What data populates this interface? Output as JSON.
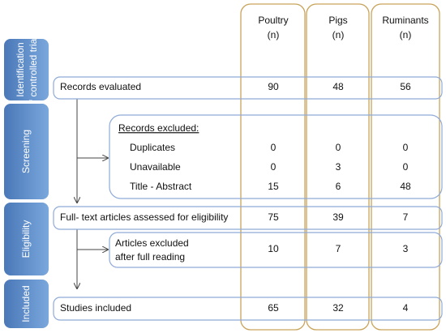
{
  "columns": [
    {
      "name": "Poultry",
      "unit": "(n)"
    },
    {
      "name": "Pigs",
      "unit": "(n)"
    },
    {
      "name": "Ruminants",
      "unit": "(n)"
    }
  ],
  "stages": [
    [
      "Identification",
      "of controlled trials"
    ],
    [
      "Screening"
    ],
    [
      "Eligibility"
    ],
    [
      "Included"
    ]
  ],
  "records_evaluated": {
    "label": "Records evaluated",
    "values": [
      90,
      48,
      56
    ]
  },
  "screening": {
    "title": "Records excluded:",
    "rows": [
      {
        "label": "Duplicates",
        "values": [
          0,
          0,
          0
        ]
      },
      {
        "label": "Unavailable",
        "values": [
          0,
          3,
          0
        ]
      },
      {
        "label": "Title - Abstract",
        "values": [
          15,
          6,
          48
        ]
      }
    ]
  },
  "eligibility": {
    "label": "Full- text articles assessed for eligibility",
    "values": [
      75,
      39,
      7
    ]
  },
  "excluded_full_text": {
    "label": [
      "Articles excluded",
      "after full reading"
    ],
    "values": [
      10,
      7,
      3
    ]
  },
  "included": {
    "label": "Studies included",
    "values": [
      65,
      32,
      4
    ]
  }
}
